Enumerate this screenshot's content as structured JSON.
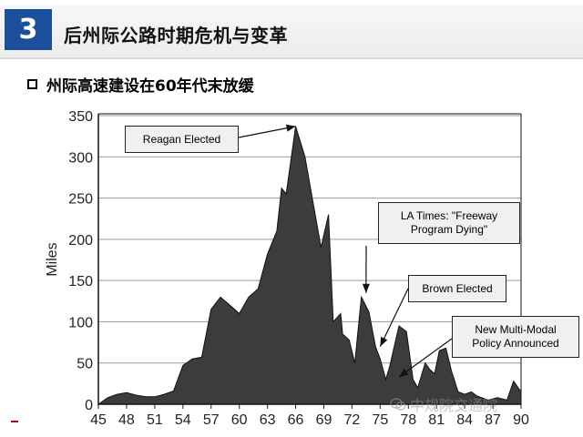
{
  "header": {
    "section_number": "3",
    "title": "后州际公路时期危机与变革",
    "accent_color": "#1c4f9c"
  },
  "bullet": {
    "icon": "square-bullet",
    "text": "州际高速建设在60年代末放缓"
  },
  "watermark": {
    "icon": "wechat-icon",
    "text": "中规院交通院"
  },
  "chart_data": {
    "type": "area",
    "title": "",
    "xlabel": "",
    "ylabel": "Miles",
    "x_ticks": [
      "45",
      "48",
      "51",
      "54",
      "57",
      "60",
      "63",
      "66",
      "69",
      "72",
      "75",
      "78",
      "81",
      "84",
      "87",
      "90"
    ],
    "y_ticks": [
      "0",
      "50",
      "100",
      "150",
      "200",
      "250",
      "300",
      "350"
    ],
    "xlim": [
      1945,
      1990
    ],
    "ylim": [
      0,
      350
    ],
    "grid": "horizontal",
    "fill_color": "#3c3c3c",
    "points": [
      [
        1945,
        0
      ],
      [
        1946,
        8
      ],
      [
        1947,
        12
      ],
      [
        1948,
        14
      ],
      [
        1949,
        11
      ],
      [
        1950,
        9
      ],
      [
        1951,
        9
      ],
      [
        1952,
        12
      ],
      [
        1953,
        16
      ],
      [
        1954,
        47
      ],
      [
        1955,
        55
      ],
      [
        1956,
        57
      ],
      [
        1957,
        115
      ],
      [
        1958,
        130
      ],
      [
        1959,
        120
      ],
      [
        1960,
        110
      ],
      [
        1961,
        130
      ],
      [
        1962,
        140
      ],
      [
        1963,
        182
      ],
      [
        1964,
        210
      ],
      [
        1964.5,
        262
      ],
      [
        1965,
        255
      ],
      [
        1966,
        337
      ],
      [
        1967,
        300
      ],
      [
        1968,
        235
      ],
      [
        1968.7,
        190
      ],
      [
        1969.5,
        230
      ],
      [
        1970,
        100
      ],
      [
        1970.8,
        110
      ],
      [
        1971,
        85
      ],
      [
        1971.7,
        78
      ],
      [
        1972.3,
        50
      ],
      [
        1973,
        130
      ],
      [
        1973.8,
        112
      ],
      [
        1974.5,
        70
      ],
      [
        1975,
        55
      ],
      [
        1975.6,
        30
      ],
      [
        1976,
        45
      ],
      [
        1977,
        95
      ],
      [
        1977.8,
        88
      ],
      [
        1978.5,
        30
      ],
      [
        1979,
        20
      ],
      [
        1979.8,
        50
      ],
      [
        1980.3,
        42
      ],
      [
        1980.8,
        37
      ],
      [
        1981.3,
        65
      ],
      [
        1982,
        68
      ],
      [
        1982.6,
        40
      ],
      [
        1983.3,
        15
      ],
      [
        1984,
        12
      ],
      [
        1984.7,
        15
      ],
      [
        1985.3,
        10
      ],
      [
        1986.5,
        5
      ],
      [
        1987.5,
        8
      ],
      [
        1988.5,
        5
      ],
      [
        1989.2,
        28
      ],
      [
        1990,
        15
      ]
    ],
    "annotations": [
      {
        "text": "Reagan Elected",
        "x": 1966,
        "y": 337
      },
      {
        "text": "LA Times: \"Freeway Program Dying\"",
        "x": 1973.5,
        "y": 135
      },
      {
        "text": "Brown Elected",
        "x": 1975,
        "y": 70
      },
      {
        "text": "New Multi-Modal Policy Announced",
        "x": 1977,
        "y": 33
      }
    ]
  }
}
